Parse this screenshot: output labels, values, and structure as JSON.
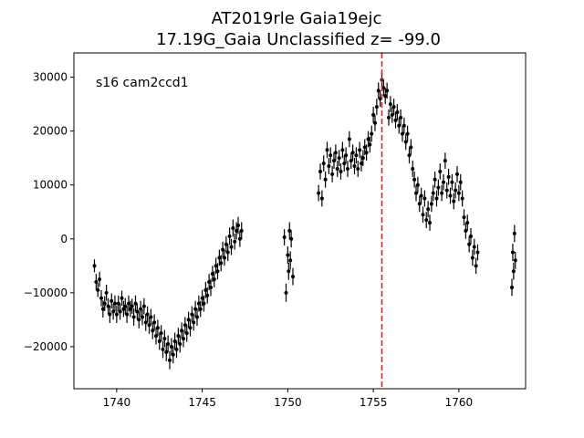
{
  "chart_data": {
    "type": "scatter",
    "title_line1": "AT2019rle  Gaia19ejc",
    "title_line2": "17.19G_Gaia Unclassified z= -99.0",
    "annotation": "s16 cam2ccd1",
    "xlabel": "",
    "ylabel": "",
    "xlim": [
      1737.5,
      1763.9
    ],
    "ylim": [
      -27800,
      34500
    ],
    "x_ticks": [
      1740,
      1745,
      1750,
      1755,
      1760
    ],
    "x_tick_labels": [
      "1740",
      "1745",
      "1750",
      "1755",
      "1760"
    ],
    "y_ticks": [
      -20000,
      -10000,
      0,
      10000,
      20000,
      30000
    ],
    "y_tick_labels": [
      "−20000",
      "−10000",
      "0",
      "10000",
      "20000",
      "30000"
    ],
    "grid": false,
    "marker_color": "#000000",
    "vline": {
      "x": 1755.5,
      "color": "#d62728",
      "style": "dashed"
    },
    "series": [
      {
        "points": [
          [
            1738.7,
            -5000,
            1200
          ],
          [
            1738.8,
            -8000,
            1500
          ],
          [
            1738.9,
            -9500,
            1300
          ],
          [
            1739.0,
            -7500,
            1400
          ],
          [
            1739.1,
            -11000,
            1500
          ],
          [
            1739.2,
            -13000,
            1600
          ],
          [
            1739.3,
            -12000,
            1400
          ],
          [
            1739.4,
            -10000,
            1500
          ],
          [
            1739.5,
            -12500,
            1500
          ],
          [
            1739.6,
            -14000,
            1600
          ],
          [
            1739.7,
            -11500,
            1400
          ],
          [
            1739.8,
            -13500,
            1500
          ],
          [
            1739.9,
            -12000,
            1500
          ],
          [
            1740.0,
            -14000,
            1600
          ],
          [
            1740.1,
            -12000,
            1500
          ],
          [
            1740.2,
            -13500,
            1500
          ],
          [
            1740.3,
            -11000,
            1400
          ],
          [
            1740.4,
            -13000,
            1500
          ],
          [
            1740.5,
            -12500,
            1500
          ],
          [
            1740.6,
            -14000,
            1600
          ],
          [
            1740.7,
            -12000,
            1500
          ],
          [
            1740.8,
            -13000,
            1500
          ],
          [
            1740.9,
            -12500,
            1400
          ],
          [
            1741.0,
            -14500,
            1600
          ],
          [
            1741.1,
            -12000,
            1500
          ],
          [
            1741.2,
            -13500,
            1500
          ],
          [
            1741.3,
            -15000,
            1600
          ],
          [
            1741.4,
            -13000,
            1500
          ],
          [
            1741.5,
            -14500,
            1500
          ],
          [
            1741.6,
            -12500,
            1500
          ],
          [
            1741.7,
            -15500,
            1600
          ],
          [
            1741.8,
            -14000,
            1500
          ],
          [
            1741.9,
            -16000,
            1600
          ],
          [
            1742.0,
            -14500,
            1500
          ],
          [
            1742.1,
            -17000,
            1600
          ],
          [
            1742.2,
            -15500,
            1500
          ],
          [
            1742.3,
            -18000,
            1600
          ],
          [
            1742.4,
            -16500,
            1500
          ],
          [
            1742.5,
            -19000,
            1600
          ],
          [
            1742.6,
            -17500,
            1500
          ],
          [
            1742.7,
            -20500,
            1600
          ],
          [
            1742.8,
            -18500,
            1600
          ],
          [
            1742.9,
            -21000,
            1700
          ],
          [
            1743.0,
            -19500,
            1600
          ],
          [
            1743.1,
            -22500,
            1700
          ],
          [
            1743.2,
            -20000,
            1600
          ],
          [
            1743.3,
            -21500,
            1600
          ],
          [
            1743.4,
            -19000,
            1600
          ],
          [
            1743.5,
            -20500,
            1600
          ],
          [
            1743.6,
            -18000,
            1500
          ],
          [
            1743.7,
            -19500,
            1600
          ],
          [
            1743.8,
            -17000,
            1500
          ],
          [
            1743.9,
            -18500,
            1600
          ],
          [
            1744.0,
            -16000,
            1500
          ],
          [
            1744.1,
            -17500,
            1600
          ],
          [
            1744.2,
            -15000,
            1500
          ],
          [
            1744.3,
            -16500,
            1600
          ],
          [
            1744.4,
            -14000,
            1500
          ],
          [
            1744.5,
            -15500,
            1500
          ],
          [
            1744.6,
            -13000,
            1500
          ],
          [
            1744.7,
            -14500,
            1600
          ],
          [
            1744.8,
            -12000,
            1500
          ],
          [
            1744.9,
            -13000,
            1500
          ],
          [
            1745.0,
            -11000,
            1500
          ],
          [
            1745.1,
            -12000,
            1500
          ],
          [
            1745.2,
            -9500,
            1500
          ],
          [
            1745.3,
            -10500,
            1500
          ],
          [
            1745.4,
            -8000,
            1500
          ],
          [
            1745.5,
            -9000,
            1600
          ],
          [
            1745.6,
            -6500,
            1500
          ],
          [
            1745.7,
            -7500,
            1500
          ],
          [
            1745.8,
            -5000,
            1500
          ],
          [
            1745.9,
            -6000,
            1500
          ],
          [
            1746.0,
            -3500,
            1500
          ],
          [
            1746.1,
            -4500,
            1500
          ],
          [
            1746.2,
            -2000,
            1500
          ],
          [
            1746.3,
            -3500,
            1500
          ],
          [
            1746.4,
            -1000,
            1500
          ],
          [
            1746.5,
            -2500,
            1600
          ],
          [
            1746.6,
            500,
            1600
          ],
          [
            1746.7,
            -1500,
            1500
          ],
          [
            1746.8,
            2000,
            1600
          ],
          [
            1746.9,
            -500,
            1500
          ],
          [
            1747.0,
            1500,
            1600
          ],
          [
            1747.1,
            2500,
            1600
          ],
          [
            1747.2,
            0,
            1500
          ],
          [
            1747.3,
            1500,
            1600
          ],
          [
            1749.8,
            300,
            1500
          ],
          [
            1749.9,
            -10000,
            1700
          ],
          [
            1750.0,
            -3000,
            1600
          ],
          [
            1750.05,
            -6000,
            1600
          ],
          [
            1750.1,
            1500,
            1600
          ],
          [
            1750.15,
            -4000,
            1700
          ],
          [
            1750.2,
            0,
            1600
          ],
          [
            1750.3,
            -7000,
            1600
          ],
          [
            1751.8,
            8500,
            1500
          ],
          [
            1751.9,
            12500,
            1500
          ],
          [
            1752.0,
            7500,
            1500
          ],
          [
            1752.1,
            14000,
            1500
          ],
          [
            1752.2,
            11000,
            1500
          ],
          [
            1752.3,
            16500,
            1500
          ],
          [
            1752.4,
            13500,
            1500
          ],
          [
            1752.5,
            15500,
            1500
          ],
          [
            1752.6,
            12000,
            1500
          ],
          [
            1752.7,
            14500,
            1500
          ],
          [
            1752.8,
            16000,
            1500
          ],
          [
            1752.9,
            13000,
            1500
          ],
          [
            1753.0,
            15000,
            1500
          ],
          [
            1753.1,
            12500,
            1500
          ],
          [
            1753.2,
            16500,
            1500
          ],
          [
            1753.3,
            14000,
            1500
          ],
          [
            1753.4,
            15500,
            1500
          ],
          [
            1753.5,
            13000,
            1500
          ],
          [
            1753.6,
            18500,
            1500
          ],
          [
            1753.7,
            14500,
            1500
          ],
          [
            1753.8,
            16000,
            1500
          ],
          [
            1753.9,
            13500,
            1500
          ],
          [
            1754.0,
            15500,
            1500
          ],
          [
            1754.1,
            13000,
            1500
          ],
          [
            1754.2,
            16500,
            1500
          ],
          [
            1754.3,
            14000,
            1500
          ],
          [
            1754.4,
            15000,
            1500
          ],
          [
            1754.5,
            17000,
            1500
          ],
          [
            1754.6,
            16000,
            1500
          ],
          [
            1754.7,
            18500,
            1500
          ],
          [
            1754.8,
            17500,
            1500
          ],
          [
            1754.9,
            19500,
            1500
          ],
          [
            1755.0,
            23000,
            1500
          ],
          [
            1755.1,
            21500,
            1500
          ],
          [
            1755.2,
            24500,
            1500
          ],
          [
            1755.3,
            27500,
            1500
          ],
          [
            1755.4,
            26000,
            1500
          ],
          [
            1755.5,
            29500,
            1500
          ],
          [
            1755.6,
            28000,
            1500
          ],
          [
            1755.7,
            26500,
            1500
          ],
          [
            1755.8,
            27500,
            1500
          ],
          [
            1755.9,
            22500,
            1500
          ],
          [
            1756.0,
            25000,
            1500
          ],
          [
            1756.1,
            23000,
            1500
          ],
          [
            1756.2,
            24500,
            1500
          ],
          [
            1756.3,
            22000,
            1500
          ],
          [
            1756.4,
            23500,
            1500
          ],
          [
            1756.5,
            21000,
            1500
          ],
          [
            1756.6,
            22500,
            1500
          ],
          [
            1756.7,
            19500,
            1500
          ],
          [
            1756.8,
            21000,
            1500
          ],
          [
            1756.9,
            18000,
            1500
          ],
          [
            1757.0,
            19500,
            1500
          ],
          [
            1757.1,
            15500,
            1500
          ],
          [
            1757.2,
            17000,
            1500
          ],
          [
            1757.3,
            13000,
            1500
          ],
          [
            1757.4,
            11000,
            1500
          ],
          [
            1757.5,
            8500,
            1500
          ],
          [
            1757.6,
            10000,
            1500
          ],
          [
            1757.7,
            6500,
            1500
          ],
          [
            1757.8,
            8000,
            1500
          ],
          [
            1757.9,
            4500,
            1500
          ],
          [
            1758.0,
            7500,
            1500
          ],
          [
            1758.1,
            3500,
            1500
          ],
          [
            1758.2,
            5500,
            1500
          ],
          [
            1758.3,
            3000,
            1500
          ],
          [
            1758.4,
            6500,
            1500
          ],
          [
            1758.5,
            8500,
            1500
          ],
          [
            1758.6,
            11000,
            1500
          ],
          [
            1758.7,
            7500,
            1500
          ],
          [
            1758.8,
            9500,
            1500
          ],
          [
            1758.9,
            12500,
            1500
          ],
          [
            1759.0,
            8500,
            1500
          ],
          [
            1759.1,
            10500,
            1500
          ],
          [
            1759.2,
            14500,
            1500
          ],
          [
            1759.3,
            9000,
            1500
          ],
          [
            1759.4,
            11500,
            1500
          ],
          [
            1759.5,
            8000,
            1500
          ],
          [
            1759.6,
            10500,
            1500
          ],
          [
            1759.7,
            7000,
            1500
          ],
          [
            1759.8,
            9000,
            1500
          ],
          [
            1759.9,
            12000,
            1500
          ],
          [
            1760.0,
            8500,
            1500
          ],
          [
            1760.1,
            10500,
            1500
          ],
          [
            1760.2,
            7500,
            1500
          ],
          [
            1760.3,
            4000,
            1500
          ],
          [
            1760.4,
            1500,
            1500
          ],
          [
            1760.5,
            3000,
            1500
          ],
          [
            1760.6,
            -1000,
            1500
          ],
          [
            1760.7,
            500,
            1500
          ],
          [
            1760.8,
            -3500,
            1500
          ],
          [
            1760.9,
            -1500,
            1500
          ],
          [
            1761.0,
            -5000,
            1500
          ],
          [
            1761.1,
            -2500,
            1500
          ],
          [
            1763.1,
            -9000,
            1600
          ],
          [
            1763.15,
            -2500,
            1600
          ],
          [
            1763.2,
            -6000,
            1600
          ],
          [
            1763.25,
            1000,
            1600
          ],
          [
            1763.3,
            -4000,
            1600
          ]
        ]
      }
    ]
  }
}
